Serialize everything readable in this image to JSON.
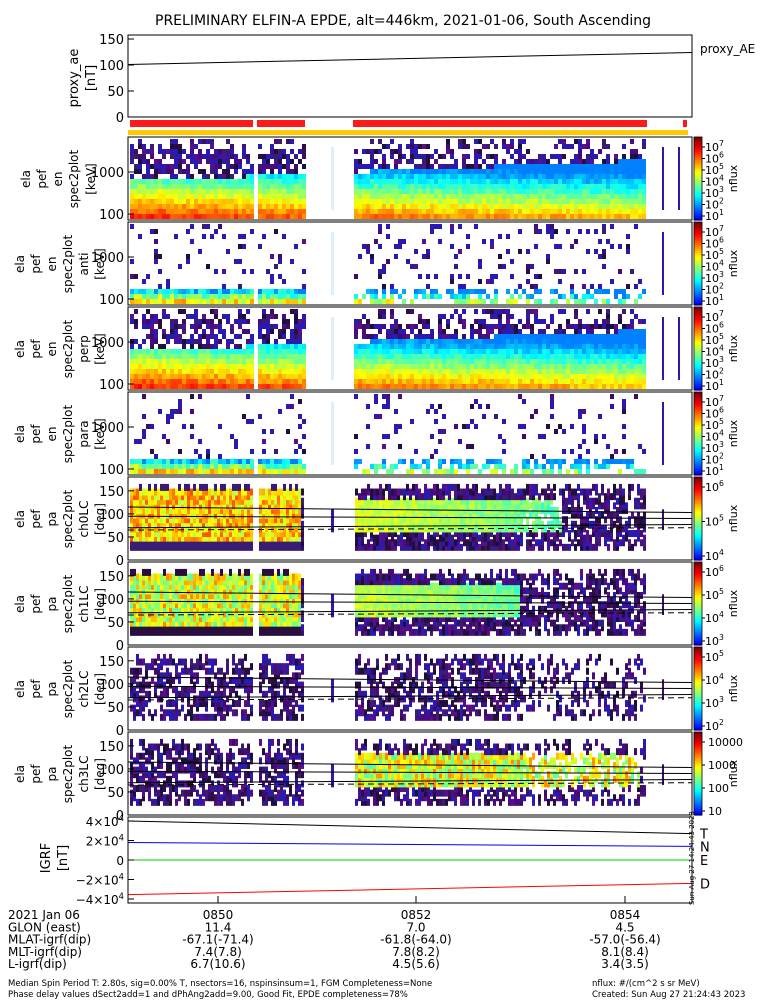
{
  "chart_data": {
    "type": "heatmap",
    "title": "PRELIMINARY ELFIN-A EPDE, alt=446km, 2021-01-06, South Ascending",
    "proxy_panel": {
      "ylabel": [
        "proxy_ae",
        "[nT]"
      ],
      "yticks": [
        "150",
        "100",
        "50",
        "0"
      ],
      "ylim": [
        0,
        150
      ],
      "legend": "proxy_AE",
      "series": {
        "x": [
          0,
          1
        ],
        "y": [
          101,
          124
        ]
      }
    },
    "spec_panels": [
      {
        "ylabel": [
          "ela",
          "pef",
          "en",
          "spec2plot",
          "[keV]"
        ],
        "yticks": [
          "1000",
          "100"
        ],
        "cbar_ticks": [
          "10^7",
          "10^6",
          "10^5",
          "10^4",
          "10^3",
          "10^2",
          "10^1"
        ],
        "cbar_label": "nflux",
        "density": 0.93
      },
      {
        "ylabel": [
          "ela",
          "pef",
          "en",
          "spec2plot",
          "anti",
          "[keV]"
        ],
        "yticks": [
          "1000",
          "100"
        ],
        "cbar_ticks": [
          "10^7",
          "10^6",
          "10^5",
          "10^4",
          "10^3",
          "10^2",
          "10^1"
        ],
        "cbar_label": "nflux",
        "density": 0.35
      },
      {
        "ylabel": [
          "ela",
          "pef",
          "en",
          "spec2plot",
          "perp",
          "[keV]"
        ],
        "yticks": [
          "1000",
          "100"
        ],
        "cbar_ticks": [
          "10^7",
          "10^6",
          "10^5",
          "10^4",
          "10^3",
          "10^2",
          "10^1"
        ],
        "cbar_label": "nflux",
        "density": 0.93
      },
      {
        "ylabel": [
          "ela",
          "pef",
          "en",
          "spec2plot",
          "para",
          "[keV]"
        ],
        "yticks": [
          "1000",
          "100"
        ],
        "cbar_ticks": [
          "10^7",
          "10^6",
          "10^5",
          "10^4",
          "10^3",
          "10^2",
          "10^1"
        ],
        "cbar_label": "nflux",
        "density": 0.3
      }
    ],
    "pa_panels": [
      {
        "ylabel": [
          "ela",
          "pef",
          "pa",
          "spec2plot",
          "ch0LC",
          "[deg]"
        ],
        "yticks": [
          "150",
          "100",
          "50",
          "0"
        ],
        "cbar_ticks": [
          "10^6",
          "10^5",
          "10^4"
        ],
        "cbar_label": "nflux",
        "fill": 0.85
      },
      {
        "ylabel": [
          "ela",
          "pef",
          "pa",
          "spec2plot",
          "ch1LC",
          "[deg]"
        ],
        "yticks": [
          "150",
          "100",
          "50",
          "0"
        ],
        "cbar_ticks": [
          "10^6",
          "10^5",
          "10^4",
          "10^3"
        ],
        "cbar_label": "nflux",
        "fill": 0.8
      },
      {
        "ylabel": [
          "ela",
          "pef",
          "pa",
          "spec2plot",
          "ch2LC",
          "[deg]"
        ],
        "yticks": [
          "150",
          "100",
          "50",
          "0"
        ],
        "cbar_ticks": [
          "10^5",
          "10^4",
          "10^3",
          "10^2"
        ],
        "cbar_label": "nflux",
        "fill": 0.55
      },
      {
        "ylabel": [
          "ela",
          "pef",
          "pa",
          "spec2plot",
          "ch3LC",
          "[deg]"
        ],
        "yticks": [
          "150",
          "100",
          "50",
          "0"
        ],
        "cbar_ticks": [
          "10000",
          "1000",
          "100",
          "10"
        ],
        "cbar_label": "nflux",
        "fill": 0.6
      }
    ],
    "igrf_panel": {
      "ylabel": [
        "IGRF",
        "[nT]"
      ],
      "yticks": [
        "4×10^4",
        "2×10^4",
        "0",
        "−2×10^4",
        "−4×10^4"
      ],
      "ylim": [
        -40000,
        40000
      ],
      "series": [
        {
          "name": "T",
          "color": "#000000",
          "y": [
            40000,
            27000
          ]
        },
        {
          "name": "N",
          "color": "#0000ff",
          "y": [
            18000,
            14000
          ]
        },
        {
          "name": "E",
          "color": "#00cc00",
          "y": [
            0,
            0
          ]
        },
        {
          "name": "D",
          "color": "#ff0000",
          "y": [
            -35500,
            -24000
          ]
        }
      ],
      "side_stamp": "Sun Aug 27 14:24:43 2023"
    },
    "x_axis": {
      "ticks": [
        "0850",
        "0852",
        "0854"
      ],
      "rows": [
        {
          "label": "2021 Jan 06",
          "values": [
            "0850",
            "0852",
            "0854"
          ]
        },
        {
          "label": "GLON (east)",
          "values": [
            "11.4",
            "7.0",
            "4.5"
          ]
        },
        {
          "label": "MLAT-igrf(dip)",
          "values": [
            "-67.1(-71.4)",
            "-61.8(-64.0)",
            "-57.0(-56.4)"
          ]
        },
        {
          "label": "MLT-igrf(dip)",
          "values": [
            "7.4(7.8)",
            "7.8(8.2)",
            "8.1(8.4)"
          ]
        },
        {
          "label": "L-igrf(dip)",
          "values": [
            "6.7(10.6)",
            "4.5(5.6)",
            "3.4(3.5)"
          ]
        }
      ]
    },
    "footer": {
      "left": [
        "Median Spin Period T: 2.80s, sig=0.00% T, nsectors=16, nspinsinsum=1, FGM Completeness=None",
        "Phase delay values dSect2add=1 and dPhAng2add=9.00, Good Fit, EPDE completeness=78%"
      ],
      "right": [
        "nflux: #/(cm^2 s sr MeV)",
        "Created: Sun Aug 27 21:24:43 2023"
      ]
    }
  }
}
